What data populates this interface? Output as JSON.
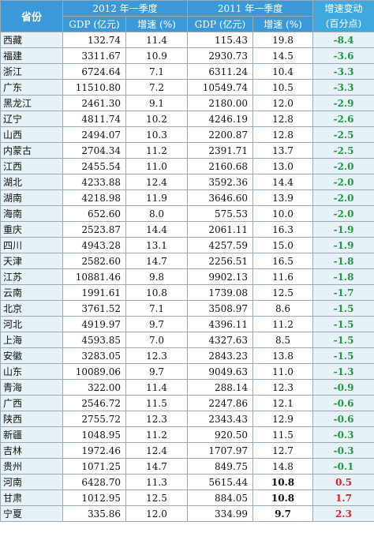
{
  "header": {
    "province": "省份",
    "year_2012": "2012 年一季度",
    "year_2011": "2011 年一季度",
    "change_line1": "增速变动",
    "change_line2": "(百分点)",
    "gdp_label": "GDP (亿元)",
    "rate_label": "增速 (%)"
  },
  "rows": [
    {
      "province": "西藏",
      "gdp2012": "132.74",
      "rate2012": "11.4",
      "gdp2011": "115.43",
      "rate2011": "19.8",
      "change": "-8.4",
      "sign": "neg",
      "bold2011": false
    },
    {
      "province": "福建",
      "gdp2012": "3311.67",
      "rate2012": "10.9",
      "gdp2011": "2930.73",
      "rate2011": "14.5",
      "change": "-3.6",
      "sign": "neg",
      "bold2011": false
    },
    {
      "province": "浙江",
      "gdp2012": "6724.64",
      "rate2012": "7.1",
      "gdp2011": "6311.24",
      "rate2011": "10.4",
      "change": "-3.3",
      "sign": "neg",
      "bold2011": false
    },
    {
      "province": "广东",
      "gdp2012": "11510.80",
      "rate2012": "7.2",
      "gdp2011": "10549.74",
      "rate2011": "10.5",
      "change": "-3.3",
      "sign": "neg",
      "bold2011": false
    },
    {
      "province": "黑龙江",
      "gdp2012": "2461.30",
      "rate2012": "9.1",
      "gdp2011": "2180.00",
      "rate2011": "12.0",
      "change": "-2.9",
      "sign": "neg",
      "bold2011": false
    },
    {
      "province": "辽宁",
      "gdp2012": "4811.74",
      "rate2012": "10.2",
      "gdp2011": "4246.19",
      "rate2011": "12.8",
      "change": "-2.6",
      "sign": "neg",
      "bold2011": false
    },
    {
      "province": "山西",
      "gdp2012": "2494.07",
      "rate2012": "10.3",
      "gdp2011": "2200.87",
      "rate2011": "12.8",
      "change": "-2.5",
      "sign": "neg",
      "bold2011": false
    },
    {
      "province": "内蒙古",
      "gdp2012": "2704.34",
      "rate2012": "11.2",
      "gdp2011": "2391.71",
      "rate2011": "13.7",
      "change": "-2.5",
      "sign": "neg",
      "bold2011": false
    },
    {
      "province": "江西",
      "gdp2012": "2455.54",
      "rate2012": "11.0",
      "gdp2011": "2160.68",
      "rate2011": "13.0",
      "change": "-2.0",
      "sign": "neg",
      "bold2011": false
    },
    {
      "province": "湖北",
      "gdp2012": "4233.88",
      "rate2012": "12.4",
      "gdp2011": "3592.36",
      "rate2011": "14.4",
      "change": "-2.0",
      "sign": "neg",
      "bold2011": false
    },
    {
      "province": "湖南",
      "gdp2012": "4218.98",
      "rate2012": "11.9",
      "gdp2011": "3646.60",
      "rate2011": "13.9",
      "change": "-2.0",
      "sign": "neg",
      "bold2011": false
    },
    {
      "province": "海南",
      "gdp2012": "652.60",
      "rate2012": "8.0",
      "gdp2011": "575.53",
      "rate2011": "10.0",
      "change": "-2.0",
      "sign": "neg",
      "bold2011": false
    },
    {
      "province": "重庆",
      "gdp2012": "2523.87",
      "rate2012": "14.4",
      "gdp2011": "2061.11",
      "rate2011": "16.3",
      "change": "-1.9",
      "sign": "neg",
      "bold2011": false
    },
    {
      "province": "四川",
      "gdp2012": "4943.28",
      "rate2012": "13.1",
      "gdp2011": "4257.59",
      "rate2011": "15.0",
      "change": "-1.9",
      "sign": "neg",
      "bold2011": false
    },
    {
      "province": "天津",
      "gdp2012": "2582.60",
      "rate2012": "14.7",
      "gdp2011": "2256.51",
      "rate2011": "16.5",
      "change": "-1.8",
      "sign": "neg",
      "bold2011": false
    },
    {
      "province": "江苏",
      "gdp2012": "10881.46",
      "rate2012": "9.8",
      "gdp2011": "9902.13",
      "rate2011": "11.6",
      "change": "-1.8",
      "sign": "neg",
      "bold2011": false
    },
    {
      "province": "云南",
      "gdp2012": "1991.61",
      "rate2012": "10.8",
      "gdp2011": "1739.08",
      "rate2011": "12.5",
      "change": "-1.7",
      "sign": "neg",
      "bold2011": false
    },
    {
      "province": "北京",
      "gdp2012": "3761.52",
      "rate2012": "7.1",
      "gdp2011": "3508.97",
      "rate2011": "8.6",
      "change": "-1.5",
      "sign": "neg",
      "bold2011": false
    },
    {
      "province": "河北",
      "gdp2012": "4919.97",
      "rate2012": "9.7",
      "gdp2011": "4396.11",
      "rate2011": "11.2",
      "change": "-1.5",
      "sign": "neg",
      "bold2011": false
    },
    {
      "province": "上海",
      "gdp2012": "4593.85",
      "rate2012": "7.0",
      "gdp2011": "4327.63",
      "rate2011": "8.5",
      "change": "-1.5",
      "sign": "neg",
      "bold2011": false
    },
    {
      "province": "安徽",
      "gdp2012": "3283.05",
      "rate2012": "12.3",
      "gdp2011": "2843.23",
      "rate2011": "13.8",
      "change": "-1.5",
      "sign": "neg",
      "bold2011": false
    },
    {
      "province": "山东",
      "gdp2012": "10089.06",
      "rate2012": "9.7",
      "gdp2011": "9049.63",
      "rate2011": "11.0",
      "change": "-1.3",
      "sign": "neg",
      "bold2011": false
    },
    {
      "province": "青海",
      "gdp2012": "322.00",
      "rate2012": "11.4",
      "gdp2011": "288.14",
      "rate2011": "12.3",
      "change": "-0.9",
      "sign": "neg",
      "bold2011": false
    },
    {
      "province": "广西",
      "gdp2012": "2546.72",
      "rate2012": "11.5",
      "gdp2011": "2247.86",
      "rate2011": "12.1",
      "change": "-0.6",
      "sign": "neg",
      "bold2011": false
    },
    {
      "province": "陕西",
      "gdp2012": "2755.72",
      "rate2012": "12.3",
      "gdp2011": "2343.43",
      "rate2011": "12.9",
      "change": "-0.6",
      "sign": "neg",
      "bold2011": false
    },
    {
      "province": "新疆",
      "gdp2012": "1048.95",
      "rate2012": "11.2",
      "gdp2011": "920.50",
      "rate2011": "11.5",
      "change": "-0.3",
      "sign": "neg",
      "bold2011": false
    },
    {
      "province": "吉林",
      "gdp2012": "1972.46",
      "rate2012": "12.4",
      "gdp2011": "1707.97",
      "rate2011": "12.7",
      "change": "-0.3",
      "sign": "neg",
      "bold2011": false
    },
    {
      "province": "贵州",
      "gdp2012": "1071.25",
      "rate2012": "14.7",
      "gdp2011": "849.75",
      "rate2011": "14.8",
      "change": "-0.1",
      "sign": "neg",
      "bold2011": false
    },
    {
      "province": "河南",
      "gdp2012": "6428.70",
      "rate2012": "11.3",
      "gdp2011": "5615.44",
      "rate2011": "10.8",
      "change": "0.5",
      "sign": "pos",
      "bold2011": true
    },
    {
      "province": "甘肃",
      "gdp2012": "1012.95",
      "rate2012": "12.5",
      "gdp2011": "884.05",
      "rate2011": "10.8",
      "change": "1.7",
      "sign": "pos",
      "bold2011": true
    },
    {
      "province": "宁夏",
      "gdp2012": "335.86",
      "rate2012": "12.0",
      "gdp2011": "334.99",
      "rate2011": "9.7",
      "change": "2.3",
      "sign": "pos",
      "bold2011": true
    }
  ],
  "colors": {
    "header_bg": "#3a9ad9",
    "province_bg": "#e6f2f8",
    "negative_change": "#1e9a3c",
    "positive_change": "#e0201e"
  }
}
